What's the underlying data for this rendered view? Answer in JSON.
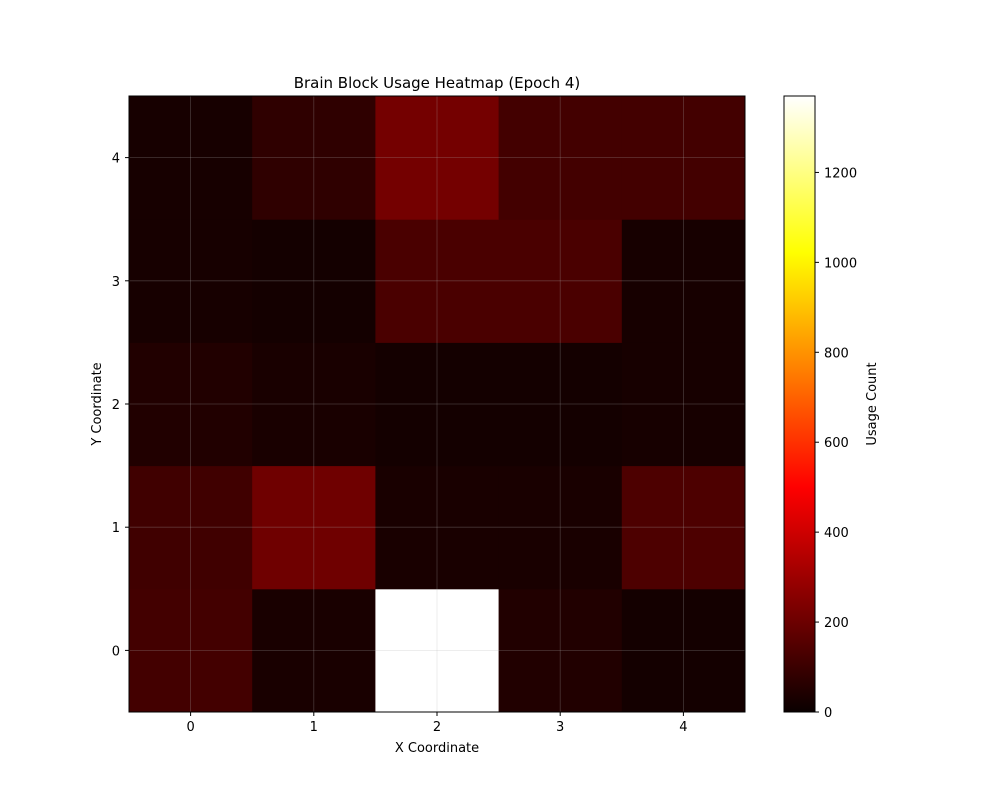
{
  "chart_data": {
    "type": "heatmap",
    "title": "Brain Block Usage Heatmap (Epoch 4)",
    "xlabel": "X Coordinate",
    "ylabel": "Y Coordinate",
    "x_categories": [
      "0",
      "1",
      "2",
      "3",
      "4"
    ],
    "y_categories": [
      "0",
      "1",
      "2",
      "3",
      "4"
    ],
    "origin": "lower",
    "values": [
      [
        115,
        30,
        1370,
        45,
        20
      ],
      [
        110,
        205,
        30,
        30,
        135
      ],
      [
        45,
        30,
        20,
        20,
        25
      ],
      [
        25,
        20,
        130,
        130,
        25
      ],
      [
        25,
        75,
        215,
        115,
        115
      ]
    ],
    "colormap": "hot",
    "vmin": 0,
    "vmax": 1370,
    "grid": true,
    "colorbar": {
      "label": "Usage Count",
      "ticks": [
        "0",
        "200",
        "400",
        "600",
        "800",
        "1000",
        "1200"
      ]
    }
  }
}
